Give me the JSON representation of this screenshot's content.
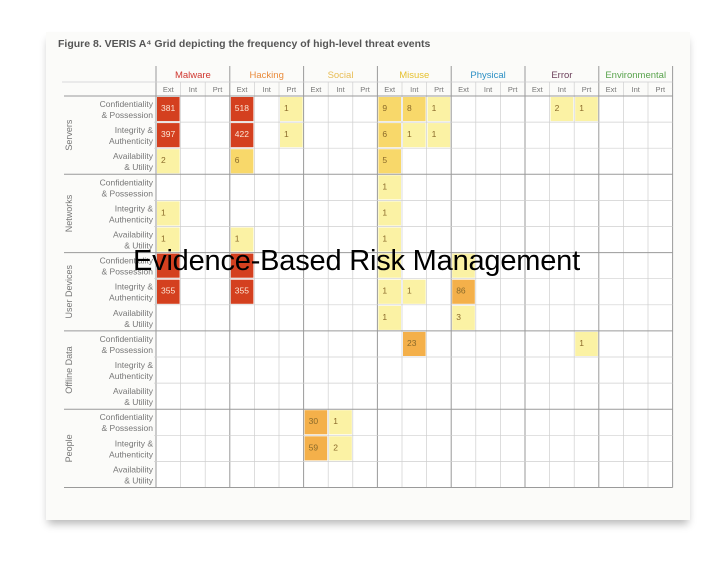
{
  "figure": {
    "caption": "Figure 8. VERIS A⁴ Grid depicting the frequency of high-level threat events"
  },
  "overlay": {
    "title": "Evidence-Based Risk Management"
  },
  "colors": {
    "bg": "#fbfbf9",
    "grid_line": "#cfcfcf",
    "group_line": "#9a9a9a",
    "label_text": "#777777",
    "scale": [
      "#fbf2a4",
      "#f8d86a",
      "#f4b04a",
      "#ec7a33",
      "#d4401f"
    ]
  },
  "chart_data": {
    "type": "heatmap",
    "title": "Figure 8. VERIS A⁴ Grid depicting the frequency of high-level threat events",
    "column_groups": [
      {
        "name": "Malware",
        "color": "#d0372f",
        "subs": [
          "Ext",
          "Int",
          "Prt"
        ]
      },
      {
        "name": "Hacking",
        "color": "#e98b3b",
        "subs": [
          "Ext",
          "Int",
          "Prt"
        ]
      },
      {
        "name": "Social",
        "color": "#e8bd55",
        "subs": [
          "Ext",
          "Int",
          "Prt"
        ]
      },
      {
        "name": "Misuse",
        "color": "#e6c12f",
        "subs": [
          "Ext",
          "Int",
          "Prt"
        ]
      },
      {
        "name": "Physical",
        "color": "#2b8fc4",
        "subs": [
          "Ext",
          "Int",
          "Prt"
        ]
      },
      {
        "name": "Error",
        "color": "#6b3f5a",
        "subs": [
          "Ext",
          "Int",
          "Prt"
        ]
      },
      {
        "name": "Environmental",
        "color": "#58a34c",
        "subs": [
          "Ext",
          "Int",
          "Prt"
        ]
      }
    ],
    "row_groups": [
      {
        "name": "Servers",
        "rows": [
          {
            "l1": "Confidentiality",
            "l2": "& Possession"
          },
          {
            "l1": "Integrity &",
            "l2": "Authenticity"
          },
          {
            "l1": "Availability",
            "l2": "& Utility"
          }
        ]
      },
      {
        "name": "Networks",
        "rows": [
          {
            "l1": "Confidentiality",
            "l2": "& Possession"
          },
          {
            "l1": "Integrity &",
            "l2": "Authenticity"
          },
          {
            "l1": "Availability",
            "l2": "& Utility"
          }
        ]
      },
      {
        "name": "User Devices",
        "rows": [
          {
            "l1": "Confidentiality",
            "l2": "& Possession"
          },
          {
            "l1": "Integrity &",
            "l2": "Authenticity"
          },
          {
            "l1": "Availability",
            "l2": "& Utility"
          }
        ]
      },
      {
        "name": "Offline Data",
        "rows": [
          {
            "l1": "Confidentiality",
            "l2": "& Possession"
          },
          {
            "l1": "Integrity &",
            "l2": "Authenticity"
          },
          {
            "l1": "Availability",
            "l2": "& Utility"
          }
        ]
      },
      {
        "name": "People",
        "rows": [
          {
            "l1": "Confidentiality",
            "l2": "& Possession"
          },
          {
            "l1": "Integrity &",
            "l2": "Authenticity"
          },
          {
            "l1": "Availability",
            "l2": "& Utility"
          }
        ]
      }
    ],
    "cells": [
      {
        "row": 0,
        "col": 0,
        "value": 381
      },
      {
        "row": 0,
        "col": 3,
        "value": 518
      },
      {
        "row": 0,
        "col": 5,
        "value": 1
      },
      {
        "row": 0,
        "col": 9,
        "value": 9
      },
      {
        "row": 0,
        "col": 10,
        "value": 8
      },
      {
        "row": 0,
        "col": 11,
        "value": 1
      },
      {
        "row": 0,
        "col": 16,
        "value": 2
      },
      {
        "row": 0,
        "col": 17,
        "value": 1
      },
      {
        "row": 1,
        "col": 0,
        "value": 397
      },
      {
        "row": 1,
        "col": 3,
        "value": 422
      },
      {
        "row": 1,
        "col": 5,
        "value": 1
      },
      {
        "row": 1,
        "col": 9,
        "value": 6
      },
      {
        "row": 1,
        "col": 10,
        "value": 1
      },
      {
        "row": 1,
        "col": 11,
        "value": 1
      },
      {
        "row": 2,
        "col": 0,
        "value": 2
      },
      {
        "row": 2,
        "col": 3,
        "value": 6
      },
      {
        "row": 2,
        "col": 9,
        "value": 5
      },
      {
        "row": 3,
        "col": 9,
        "value": 1
      },
      {
        "row": 4,
        "col": 0,
        "value": 1
      },
      {
        "row": 4,
        "col": 9,
        "value": 1
      },
      {
        "row": 5,
        "col": 0,
        "value": 1
      },
      {
        "row": 5,
        "col": 3,
        "value": 1
      },
      {
        "row": 5,
        "col": 9,
        "value": 1
      },
      {
        "row": 6,
        "col": 0,
        "value": 356
      },
      {
        "row": 6,
        "col": 3,
        "value": 419
      },
      {
        "row": 6,
        "col": 9,
        "value": 1
      },
      {
        "row": 6,
        "col": 12,
        "value": 1
      },
      {
        "row": 7,
        "col": 0,
        "value": 355
      },
      {
        "row": 7,
        "col": 3,
        "value": 355
      },
      {
        "row": 7,
        "col": 9,
        "value": 1
      },
      {
        "row": 7,
        "col": 10,
        "value": 1
      },
      {
        "row": 7,
        "col": 12,
        "value": 86
      },
      {
        "row": 8,
        "col": 9,
        "value": 1
      },
      {
        "row": 8,
        "col": 12,
        "value": 3
      },
      {
        "row": 9,
        "col": 10,
        "value": 23
      },
      {
        "row": 9,
        "col": 17,
        "value": 1
      },
      {
        "row": 12,
        "col": 6,
        "value": 30
      },
      {
        "row": 12,
        "col": 7,
        "value": 1
      },
      {
        "row": 13,
        "col": 6,
        "value": 59
      },
      {
        "row": 13,
        "col": 7,
        "value": 2
      }
    ],
    "hidden_values": [
      {
        "row": 6,
        "col": 0
      },
      {
        "row": 6,
        "col": 3
      },
      {
        "row": 6,
        "col": 9
      },
      {
        "row": 6,
        "col": 12
      }
    ]
  }
}
